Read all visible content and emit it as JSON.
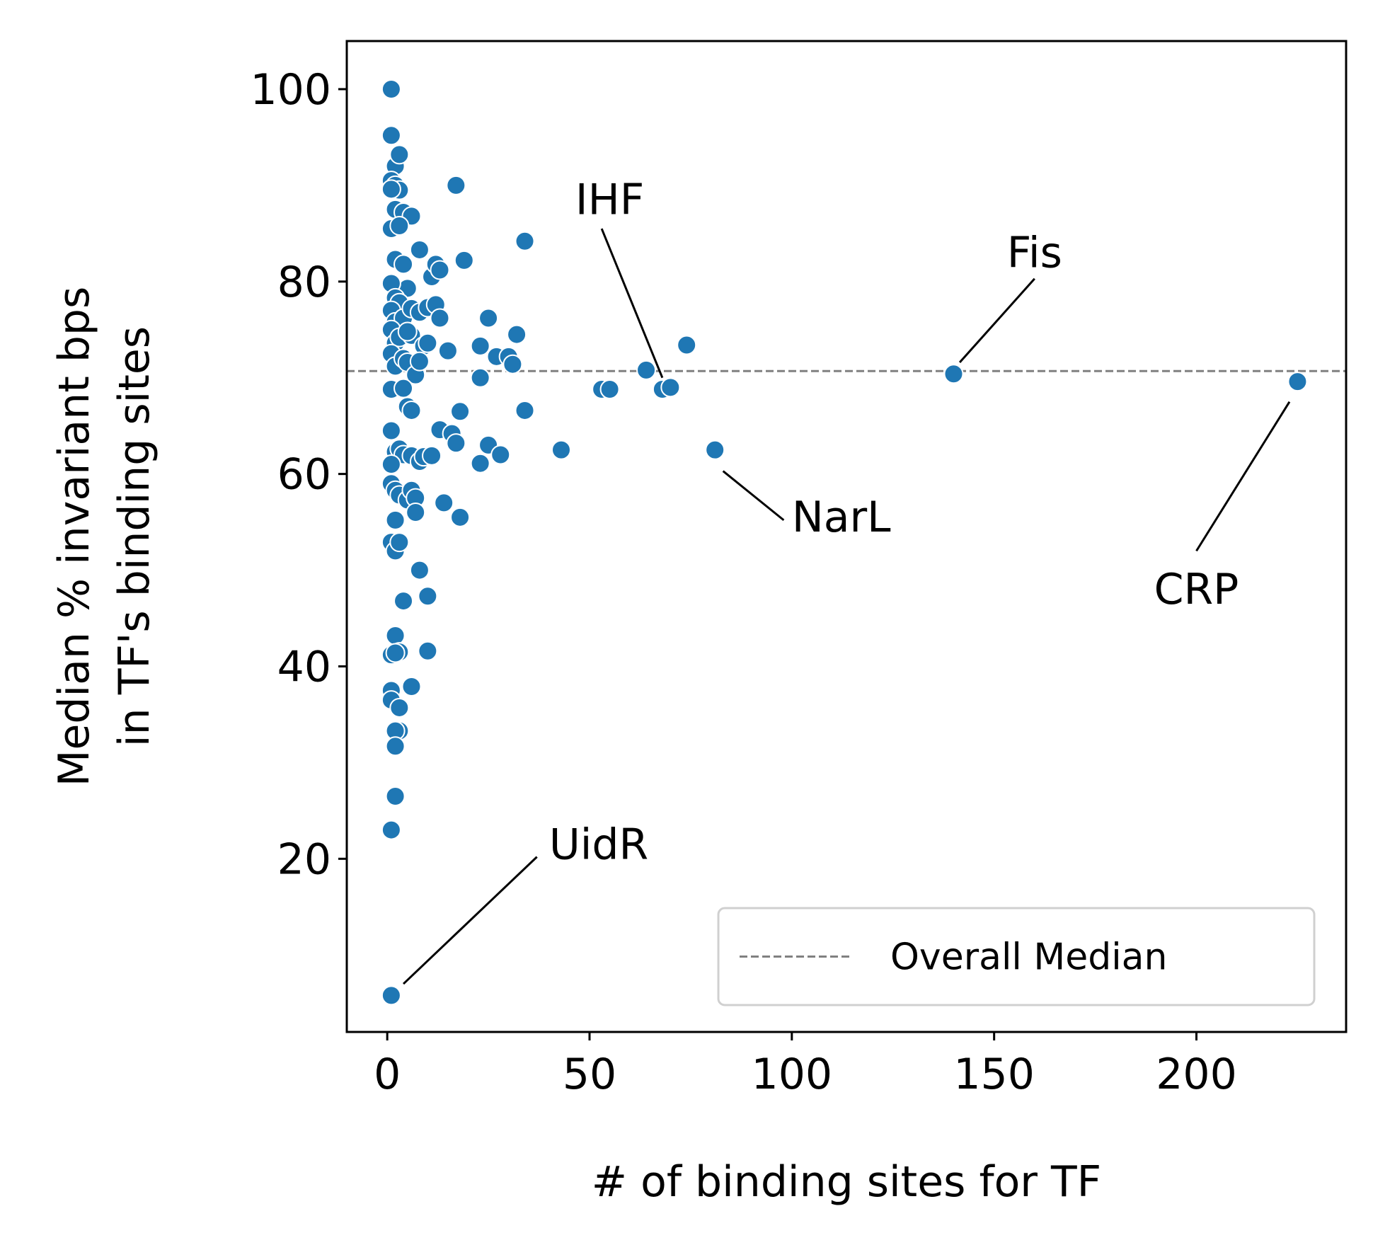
{
  "chart_data": {
    "type": "scatter",
    "xlabel": "# of binding sites for TF",
    "ylabel_lines": [
      "Median % invariant bps",
      "in TF's binding sites"
    ],
    "xlim": [
      -10,
      237
    ],
    "ylim": [
      2,
      105
    ],
    "xticks": [
      0,
      50,
      100,
      150,
      200
    ],
    "yticks": [
      20,
      40,
      60,
      80,
      100
    ],
    "grid": false,
    "legend": {
      "position": "lower-right",
      "label": "Overall Median"
    },
    "reference_line": {
      "y": 70.7,
      "style": "dashed",
      "color": "#808080"
    },
    "point_color": "#1f77b4",
    "points": [
      [
        1,
        100
      ],
      [
        1,
        95.2
      ],
      [
        2,
        92
      ],
      [
        3,
        93.2
      ],
      [
        1,
        90.5
      ],
      [
        2,
        90
      ],
      [
        3,
        89.5
      ],
      [
        1,
        89.6
      ],
      [
        2,
        87.5
      ],
      [
        4,
        87.2
      ],
      [
        6,
        86.8
      ],
      [
        1,
        85.5
      ],
      [
        3,
        85.8
      ],
      [
        17,
        90
      ],
      [
        8,
        83.3
      ],
      [
        2,
        82.3
      ],
      [
        4,
        81.8
      ],
      [
        5,
        79.3
      ],
      [
        1,
        79.8
      ],
      [
        2,
        78.3
      ],
      [
        3,
        77.8
      ],
      [
        1,
        77
      ],
      [
        2,
        75.8
      ],
      [
        4,
        76.2
      ],
      [
        6,
        77.2
      ],
      [
        8,
        76.8
      ],
      [
        10,
        77.3
      ],
      [
        11,
        80.5
      ],
      [
        12,
        81.8
      ],
      [
        13,
        81.2
      ],
      [
        19,
        82.2
      ],
      [
        34,
        84.2
      ],
      [
        12,
        77.6
      ],
      [
        13,
        76.2
      ],
      [
        1,
        75
      ],
      [
        2,
        73.6
      ],
      [
        3,
        74.2
      ],
      [
        6,
        74.4
      ],
      [
        5,
        74.8
      ],
      [
        9,
        73.3
      ],
      [
        10,
        73.6
      ],
      [
        15,
        72.8
      ],
      [
        25,
        76.2
      ],
      [
        23,
        73.3
      ],
      [
        27,
        72.2
      ],
      [
        30,
        72.2
      ],
      [
        31,
        71.4
      ],
      [
        32,
        74.5
      ],
      [
        1,
        72.5
      ],
      [
        2,
        71.2
      ],
      [
        4,
        72
      ],
      [
        5,
        71.6
      ],
      [
        7,
        70.3
      ],
      [
        8,
        71.7
      ],
      [
        74,
        73.4
      ],
      [
        64,
        70.8
      ],
      [
        68,
        68.8
      ],
      [
        70,
        69
      ],
      [
        53,
        68.8
      ],
      [
        55,
        68.8
      ],
      [
        140,
        70.4
      ],
      [
        225,
        69.6
      ],
      [
        1,
        68.8
      ],
      [
        4,
        68.9
      ],
      [
        5,
        67
      ],
      [
        6,
        66.6
      ],
      [
        23,
        70
      ],
      [
        18,
        66.5
      ],
      [
        34,
        66.6
      ],
      [
        1,
        64.5
      ],
      [
        2,
        62.3
      ],
      [
        3,
        62.6
      ],
      [
        4,
        62
      ],
      [
        6,
        61.9
      ],
      [
        8,
        61.3
      ],
      [
        9,
        61.8
      ],
      [
        11,
        61.9
      ],
      [
        13,
        64.6
      ],
      [
        16,
        64.2
      ],
      [
        17,
        63.2
      ],
      [
        25,
        63
      ],
      [
        28,
        62
      ],
      [
        23,
        61.1
      ],
      [
        43,
        62.5
      ],
      [
        81,
        62.5
      ],
      [
        1,
        61
      ],
      [
        1,
        59
      ],
      [
        2,
        58.3
      ],
      [
        3,
        57.8
      ],
      [
        5,
        57.3
      ],
      [
        6,
        58.3
      ],
      [
        7,
        57.5
      ],
      [
        7,
        56
      ],
      [
        14,
        57
      ],
      [
        18,
        55.5
      ],
      [
        2,
        55.2
      ],
      [
        1,
        52.9
      ],
      [
        2,
        52
      ],
      [
        3,
        52.9
      ],
      [
        4,
        46.8
      ],
      [
        8,
        50
      ],
      [
        10,
        47.3
      ],
      [
        2,
        43.2
      ],
      [
        1,
        41.2
      ],
      [
        3,
        41.5
      ],
      [
        10,
        41.6
      ],
      [
        2,
        41.4
      ],
      [
        6,
        37.9
      ],
      [
        1,
        37.5
      ],
      [
        1,
        36.5
      ],
      [
        3,
        35.7
      ],
      [
        3,
        33.3
      ],
      [
        2,
        33.3
      ],
      [
        2,
        31.7
      ],
      [
        2,
        26.5
      ],
      [
        1,
        23
      ],
      [
        1,
        5.8
      ]
    ],
    "annotations": [
      {
        "label": "UidR",
        "point": [
          1,
          5.8
        ],
        "text_at": [
          40,
          20
        ],
        "line_from": [
          4,
          7
        ],
        "line_to": [
          37,
          20.2
        ],
        "anchor": "start"
      },
      {
        "label": "IHF",
        "point": [
          68,
          69
        ],
        "text_at": [
          55,
          87
        ],
        "line_from": [
          53,
          85.5
        ],
        "line_to": [
          68,
          70
        ],
        "anchor": "middle"
      },
      {
        "label": "NarL",
        "point": [
          81,
          62.5
        ],
        "text_at": [
          100,
          54
        ],
        "line_from": [
          83,
          60.3
        ],
        "line_to": [
          98,
          55.2
        ],
        "anchor": "start"
      },
      {
        "label": "Fis",
        "point": [
          140,
          70.4
        ],
        "text_at": [
          160,
          81.5
        ],
        "line_from": [
          141.5,
          71.6
        ],
        "line_to": [
          160,
          80.3
        ],
        "anchor": "middle"
      },
      {
        "label": "CRP",
        "point": [
          225,
          69.6
        ],
        "text_at": [
          200,
          46.5
        ],
        "line_from": [
          200,
          52
        ],
        "line_to": [
          223,
          67.5
        ],
        "anchor": "middle"
      }
    ]
  }
}
